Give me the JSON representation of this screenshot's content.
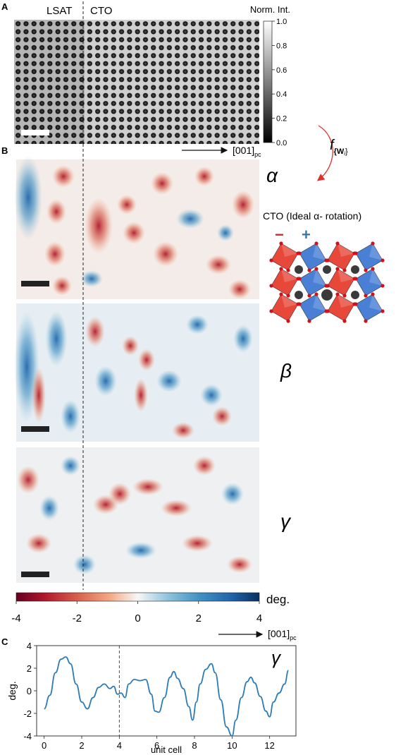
{
  "panel_a": {
    "label": "A",
    "region_left": "LSAT",
    "region_right": "CTO",
    "colorbar_title": "Norm. Int.",
    "colorbar_ticks": [
      "0.0",
      "0.2",
      "0.4",
      "0.6",
      "0.8",
      "1.0"
    ],
    "direction_label": "[001]",
    "direction_sub": "pc"
  },
  "panel_b": {
    "label": "B",
    "maps": [
      {
        "symbol": "α"
      },
      {
        "symbol": "β"
      },
      {
        "symbol": "γ"
      }
    ],
    "colorbar_unit": "deg.",
    "colorbar_ticks": [
      "-4",
      "-2",
      "0",
      "2",
      "4"
    ],
    "direction_label": "[001]",
    "direction_sub": "pc",
    "arrow_function": "f",
    "arrow_function_sub": "{W",
    "arrow_function_sub2": "i",
    "arrow_function_close": "}",
    "model_title": "CTO (Ideal α- rotation)",
    "model_minus": "−",
    "model_plus": "+",
    "colors": {
      "neg": "#67001f",
      "mid": "#f7f7f7",
      "pos": "#053061",
      "red_octa": "#e8483a",
      "blue_octa": "#4a7fd6",
      "arrow": "#e0302a"
    }
  },
  "panel_c": {
    "label": "C",
    "symbol": "γ"
  },
  "chart_data": {
    "type": "line",
    "title": "",
    "xlabel": "unit cell",
    "ylabel": "deg.",
    "xlim": [
      -0.4,
      13.4
    ],
    "ylim": [
      -4,
      4
    ],
    "xticks": [
      0,
      2,
      4,
      6,
      8,
      10,
      12
    ],
    "yticks": [
      -4,
      -2,
      0,
      2,
      4
    ],
    "vline_x": 4,
    "series": [
      {
        "color": "#2c7bb6",
        "x": [
          0,
          0.3,
          0.6,
          0.9,
          1.15,
          1.4,
          1.7,
          2.0,
          2.3,
          2.6,
          2.9,
          3.2,
          3.5,
          3.7,
          3.9,
          4.1,
          4.3,
          4.5,
          4.8,
          5.1,
          5.4,
          5.7,
          5.9,
          6.1,
          6.4,
          6.7,
          6.9,
          7.1,
          7.4,
          7.7,
          7.9,
          8.1,
          8.3,
          8.6,
          8.9,
          9.1,
          9.4,
          9.7,
          10.0,
          10.2,
          10.5,
          10.8,
          11.0,
          11.2,
          11.5,
          11.8,
          12.0,
          12.2,
          12.5,
          12.8,
          13.0
        ],
        "y": [
          -1.6,
          -0.4,
          1.6,
          2.8,
          3.0,
          2.4,
          0.6,
          -1.0,
          -1.6,
          -0.6,
          0.3,
          0.6,
          0.2,
          0.4,
          -0.3,
          -0.2,
          -0.6,
          0.6,
          1.0,
          0.9,
          1.0,
          -0.3,
          -1.8,
          -1.9,
          -0.6,
          1.2,
          1.7,
          1.1,
          0.2,
          -1.4,
          -2.6,
          -1.0,
          0.6,
          1.9,
          2.4,
          1.6,
          -0.8,
          -3.2,
          -4.0,
          -2.6,
          -0.6,
          0.8,
          1.2,
          0.7,
          -0.5,
          -1.8,
          -2.3,
          -1.0,
          -0.2,
          0.6,
          1.8
        ]
      }
    ]
  }
}
